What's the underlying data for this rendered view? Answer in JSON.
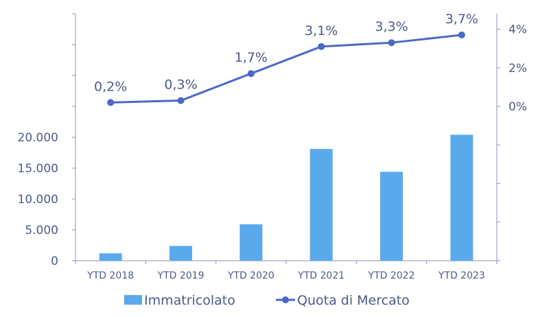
{
  "chart_data": {
    "type": "bar+line",
    "categories": [
      "YTD 2018",
      "YTD 2019",
      "YTD 2020",
      "YTD 2021",
      "YTD 2022",
      "YTD 2023"
    ],
    "series": [
      {
        "name": "Immatricolato",
        "type": "bar",
        "axis": "left",
        "values": [
          1200,
          2400,
          5900,
          18100,
          14400,
          20400
        ],
        "color": "#5aa9ec"
      },
      {
        "name": "Quota di Mercato",
        "type": "line",
        "axis": "right",
        "values": [
          0.2,
          0.3,
          1.7,
          3.1,
          3.3,
          3.7
        ],
        "labels": [
          "0,2%",
          "0,3%",
          "1,7%",
          "3,1%",
          "3,3%",
          "3,7%"
        ],
        "color": "#4a68c9"
      }
    ],
    "y_left": {
      "ticks": [
        0,
        5000,
        10000,
        15000,
        20000
      ],
      "tick_labels": [
        "0",
        "5.000",
        "10.000",
        "15.000",
        "20.000"
      ],
      "range": [
        0,
        40000
      ]
    },
    "y_right": {
      "ticks": [
        0,
        2,
        4
      ],
      "tick_labels": [
        "0%",
        "2%",
        "4%"
      ],
      "range": [
        -8,
        4.8
      ]
    },
    "legend": {
      "position": "bottom"
    },
    "grid": false,
    "axis_color": "#8a93b8"
  }
}
